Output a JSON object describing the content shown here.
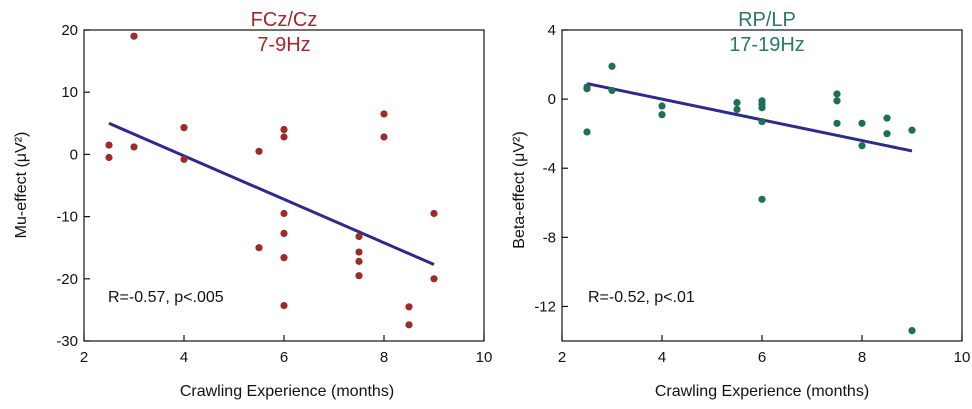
{
  "chart_data": [
    {
      "type": "scatter",
      "title_lines": [
        "FCz/Cz",
        "7-9Hz"
      ],
      "title_color": "#9e2a2b",
      "point_color": "#9e2a2b",
      "line_color": "#2e2a8c",
      "xlabel": "Crawling Experience (months)",
      "ylabel": "Mu-effect (μV²)",
      "xlim": [
        2,
        10
      ],
      "ylim": [
        -30,
        20
      ],
      "xticks": [
        2,
        4,
        6,
        8,
        10
      ],
      "xtick_labels": [
        "2",
        "4",
        "6",
        "8",
        "10"
      ],
      "yticks": [
        -30,
        -20,
        -10,
        0,
        10,
        20
      ],
      "ytick_labels": [
        "-30",
        "-20",
        "-10",
        "0",
        "10",
        "20"
      ],
      "annotation": "R=-0.57, p<.005",
      "points": [
        [
          2.5,
          1.5
        ],
        [
          2.5,
          -0.5
        ],
        [
          3.0,
          19.0
        ],
        [
          3.0,
          1.2
        ],
        [
          4.0,
          4.3
        ],
        [
          4.0,
          -0.8
        ],
        [
          5.5,
          0.5
        ],
        [
          5.5,
          -15.0
        ],
        [
          6.0,
          4.0
        ],
        [
          6.0,
          2.8
        ],
        [
          6.0,
          -9.5
        ],
        [
          6.0,
          -12.7
        ],
        [
          6.0,
          -16.6
        ],
        [
          6.0,
          -24.3
        ],
        [
          7.5,
          -13.2
        ],
        [
          7.5,
          -15.7
        ],
        [
          7.5,
          -17.2
        ],
        [
          7.5,
          -19.5
        ],
        [
          8.0,
          6.5
        ],
        [
          8.0,
          2.8
        ],
        [
          8.5,
          -24.5
        ],
        [
          8.5,
          -27.4
        ],
        [
          9.0,
          -9.5
        ],
        [
          9.0,
          -20.0
        ]
      ],
      "fit_line": [
        [
          2.5,
          5.0
        ],
        [
          9.0,
          -17.7
        ]
      ]
    },
    {
      "type": "scatter",
      "title_lines": [
        "RP/LP",
        "17-19Hz"
      ],
      "title_color": "#2a7a5e",
      "point_color": "#1f6e55",
      "line_color": "#2e2a8c",
      "xlabel": "Crawling Experience (months)",
      "ylabel": "Beta-effect (μV²)",
      "xlim": [
        2,
        10
      ],
      "ylim": [
        -14,
        4
      ],
      "xticks": [
        2,
        4,
        6,
        8,
        10
      ],
      "xtick_labels": [
        "2",
        "4",
        "6",
        "8",
        "10"
      ],
      "yticks": [
        -12,
        -8,
        -4,
        0,
        4
      ],
      "ytick_labels": [
        "-12",
        "-8",
        "-4",
        "0",
        "4"
      ],
      "annotation": "R=-0.52, p<.01",
      "points": [
        [
          2.5,
          0.7
        ],
        [
          2.5,
          0.6
        ],
        [
          2.5,
          -1.9
        ],
        [
          3.0,
          1.9
        ],
        [
          3.0,
          0.5
        ],
        [
          4.0,
          -0.4
        ],
        [
          4.0,
          -0.9
        ],
        [
          5.5,
          -0.2
        ],
        [
          5.5,
          -0.6
        ],
        [
          6.0,
          -0.1
        ],
        [
          6.0,
          -0.3
        ],
        [
          6.0,
          -0.5
        ],
        [
          6.0,
          -1.3
        ],
        [
          6.0,
          -5.8
        ],
        [
          7.5,
          0.3
        ],
        [
          7.5,
          -0.1
        ],
        [
          7.5,
          -1.4
        ],
        [
          8.0,
          -1.4
        ],
        [
          8.0,
          -2.7
        ],
        [
          8.5,
          -1.1
        ],
        [
          8.5,
          -2.0
        ],
        [
          9.0,
          -1.8
        ],
        [
          9.0,
          -13.4
        ]
      ],
      "fit_line": [
        [
          2.5,
          0.9
        ],
        [
          9.0,
          -3.0
        ]
      ]
    }
  ]
}
